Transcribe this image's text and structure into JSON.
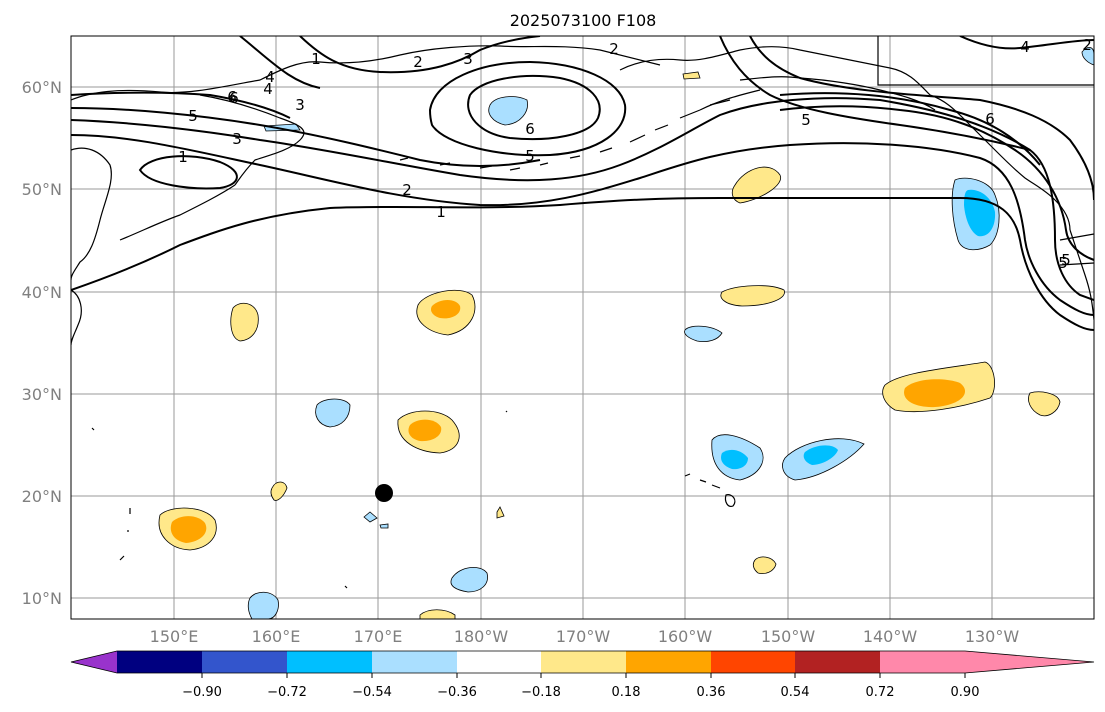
{
  "title": "2025073100 F108",
  "map": {
    "lat_labels": [
      "60°N",
      "50°N",
      "40°N",
      "30°N",
      "20°N",
      "10°N"
    ],
    "lon_labels": [
      "150°E",
      "160°E",
      "170°E",
      "180°W",
      "170°W",
      "160°W",
      "150°W",
      "140°W",
      "130°W"
    ],
    "contour_labels": [
      "1",
      "2",
      "3",
      "4",
      "5",
      "6",
      "6",
      "5",
      "2",
      "1",
      "2",
      "3",
      "4",
      "5",
      "6",
      "1",
      "2",
      "3",
      "4",
      "5",
      "6",
      "5"
    ]
  },
  "colorbar": {
    "tick_labels": [
      "−0.90",
      "−0.72",
      "−0.54",
      "−0.36",
      "−0.18",
      "0.18",
      "0.36",
      "0.54",
      "0.72",
      "0.90"
    ],
    "colors": [
      "#9933cc",
      "#000080",
      "#3355cc",
      "#00bfff",
      "#aadfff",
      "#ffffff",
      "#ffe88a",
      "#ffa500",
      "#ff4500",
      "#b22222",
      "#ff88aa"
    ]
  }
}
